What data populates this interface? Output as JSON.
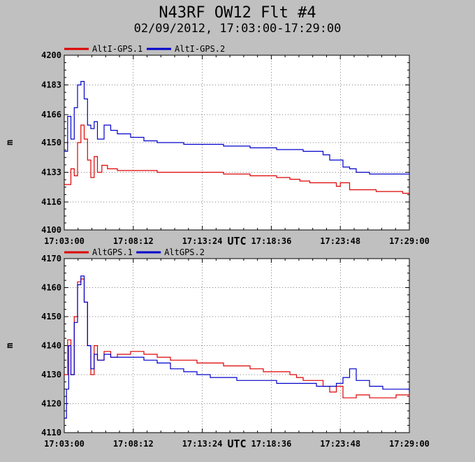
{
  "title": "N43RF OW12 Flt #4",
  "subtitle": "02/09/2012, 17:03:00-17:29:00",
  "colors": {
    "background": "#c0c0c0",
    "plot_bg": "#ffffff",
    "series1": "#dd0000",
    "series2": "#0000cc"
  },
  "chart_data": [
    {
      "type": "line",
      "ylabel": "m",
      "xunit": "UTC",
      "ylim": [
        4100,
        4200
      ],
      "yticks": [
        "4100",
        "4116",
        "4133",
        "4150",
        "4166",
        "4183",
        "4200"
      ],
      "xlim": [
        "17:03:00",
        "17:29:00"
      ],
      "xticks": [
        "17:03:00",
        "17:08:12",
        "17:13:24",
        "17:18:36",
        "17:23:48",
        "17:29:00"
      ],
      "grid": true,
      "legend_placement": "top-left",
      "series": [
        {
          "name": "AltI-GPS.1",
          "color": "#dd0000",
          "x": [
            "17:03:00",
            "17:03:30",
            "17:03:45",
            "17:04:00",
            "17:04:15",
            "17:04:30",
            "17:04:45",
            "17:05:00",
            "17:05:15",
            "17:05:30",
            "17:05:50",
            "17:06:15",
            "17:07:00",
            "17:08:00",
            "17:10:00",
            "17:12:00",
            "17:13:00",
            "17:14:00",
            "17:15:00",
            "17:16:00",
            "17:17:00",
            "17:18:00",
            "17:19:00",
            "17:20:00",
            "17:20:45",
            "17:21:30",
            "17:22:30",
            "17:23:30",
            "17:23:48",
            "17:24:30",
            "17:25:30",
            "17:26:30",
            "17:27:30",
            "17:28:30",
            "17:29:00"
          ],
          "values": [
            4126,
            4135,
            4131,
            4150,
            4160,
            4152,
            4140,
            4130,
            4142,
            4133,
            4137,
            4135,
            4134,
            4134,
            4133,
            4133,
            4133,
            4133,
            4132,
            4132,
            4131,
            4131,
            4130,
            4129,
            4128,
            4127,
            4127,
            4125,
            4127,
            4123,
            4123,
            4122,
            4122,
            4121,
            4121
          ]
        },
        {
          "name": "AltI-GPS.2",
          "color": "#0000cc",
          "x": [
            "17:03:00",
            "17:03:15",
            "17:03:30",
            "17:03:45",
            "17:04:00",
            "17:04:15",
            "17:04:30",
            "17:04:45",
            "17:05:00",
            "17:05:15",
            "17:05:30",
            "17:06:00",
            "17:06:30",
            "17:07:00",
            "17:07:30",
            "17:08:00",
            "17:09:00",
            "17:10:00",
            "17:11:00",
            "17:12:00",
            "17:13:00",
            "17:14:00",
            "17:15:00",
            "17:16:00",
            "17:17:00",
            "17:18:00",
            "17:19:00",
            "17:20:00",
            "17:21:00",
            "17:22:00",
            "17:22:30",
            "17:23:00",
            "17:24:00",
            "17:24:30",
            "17:25:00",
            "17:26:00",
            "17:27:00",
            "17:28:00",
            "17:29:00"
          ],
          "values": [
            4145,
            4165,
            4152,
            4170,
            4183,
            4185,
            4175,
            4160,
            4158,
            4162,
            4152,
            4160,
            4157,
            4155,
            4155,
            4153,
            4151,
            4150,
            4150,
            4149,
            4149,
            4149,
            4148,
            4148,
            4147,
            4147,
            4146,
            4146,
            4145,
            4145,
            4143,
            4140,
            4136,
            4135,
            4133,
            4132,
            4132,
            4132,
            4133
          ]
        }
      ]
    },
    {
      "type": "line",
      "ylabel": "m",
      "xunit": "UTC",
      "ylim": [
        4110,
        4170
      ],
      "yticks": [
        "4110",
        "4120",
        "4130",
        "4140",
        "4150",
        "4160",
        "4170"
      ],
      "xlim": [
        "17:03:00",
        "17:29:00"
      ],
      "xticks": [
        "17:03:00",
        "17:08:12",
        "17:13:24",
        "17:18:36",
        "17:23:48",
        "17:29:00"
      ],
      "grid": true,
      "legend_placement": "top-left",
      "series": [
        {
          "name": "AltGPS.1",
          "color": "#dd0000",
          "x": [
            "17:03:00",
            "17:03:15",
            "17:03:30",
            "17:03:45",
            "17:04:00",
            "17:04:15",
            "17:04:30",
            "17:04:45",
            "17:05:00",
            "17:05:15",
            "17:05:30",
            "17:06:00",
            "17:06:30",
            "17:07:00",
            "17:08:00",
            "17:09:00",
            "17:10:00",
            "17:11:00",
            "17:12:00",
            "17:13:00",
            "17:14:00",
            "17:15:00",
            "17:16:00",
            "17:17:00",
            "17:18:00",
            "17:19:00",
            "17:20:00",
            "17:20:30",
            "17:21:00",
            "17:22:00",
            "17:22:30",
            "17:23:00",
            "17:23:30",
            "17:24:00",
            "17:25:00",
            "17:26:00",
            "17:27:00",
            "17:28:00",
            "17:29:00"
          ],
          "values": [
            4130,
            4142,
            4130,
            4150,
            4162,
            4163,
            4155,
            4140,
            4130,
            4140,
            4135,
            4138,
            4136,
            4137,
            4138,
            4137,
            4136,
            4135,
            4135,
            4134,
            4134,
            4133,
            4133,
            4132,
            4131,
            4131,
            4130,
            4129,
            4128,
            4128,
            4126,
            4124,
            4126,
            4122,
            4123,
            4122,
            4122,
            4123,
            4122
          ]
        },
        {
          "name": "AltGPS.2",
          "color": "#0000cc",
          "x": [
            "17:03:00",
            "17:03:10",
            "17:03:20",
            "17:03:30",
            "17:03:45",
            "17:04:00",
            "17:04:15",
            "17:04:30",
            "17:04:45",
            "17:05:00",
            "17:05:15",
            "17:05:30",
            "17:06:00",
            "17:06:30",
            "17:07:00",
            "17:08:00",
            "17:09:00",
            "17:10:00",
            "17:11:00",
            "17:12:00",
            "17:13:00",
            "17:14:00",
            "17:15:00",
            "17:16:00",
            "17:17:00",
            "17:18:00",
            "17:19:00",
            "17:20:00",
            "17:21:00",
            "17:22:00",
            "17:22:30",
            "17:23:00",
            "17:23:30",
            "17:24:00",
            "17:24:30",
            "17:25:00",
            "17:26:00",
            "17:27:00",
            "17:28:00",
            "17:29:00"
          ],
          "values": [
            4115,
            4125,
            4140,
            4130,
            4148,
            4161,
            4164,
            4155,
            4140,
            4132,
            4137,
            4135,
            4137,
            4136,
            4136,
            4136,
            4135,
            4134,
            4132,
            4131,
            4130,
            4129,
            4129,
            4128,
            4128,
            4128,
            4127,
            4127,
            4127,
            4126,
            4126,
            4126,
            4127,
            4129,
            4132,
            4128,
            4126,
            4125,
            4125,
            4124
          ]
        }
      ]
    }
  ]
}
